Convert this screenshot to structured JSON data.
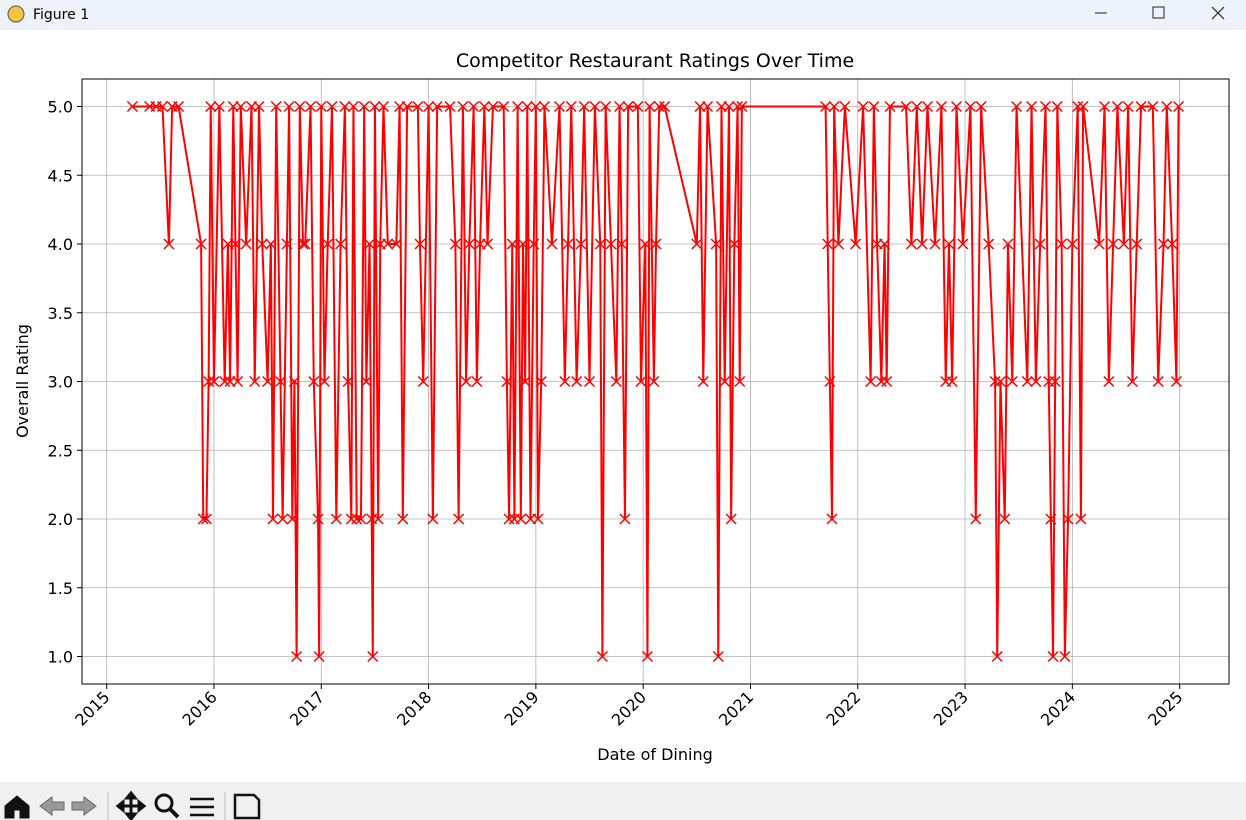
{
  "window": {
    "title": "Figure 1"
  },
  "chart_data": {
    "type": "line",
    "title": "Competitor Restaurant Ratings Over Time",
    "x_label": "Date of Dining",
    "y_label": "Overall Rating",
    "color": "#ff0000",
    "marker": "x",
    "grid": true,
    "xlim": [
      2014.77,
      2025.46
    ],
    "ylim": [
      0.8,
      5.2
    ],
    "xticks": [
      2015,
      2016,
      2017,
      2018,
      2019,
      2020,
      2021,
      2022,
      2023,
      2024,
      2025
    ],
    "yticks": [
      {
        "value": 1,
        "label": "1.0"
      },
      {
        "value": 1.5,
        "label": "1.5"
      },
      {
        "value": 2,
        "label": "2.0"
      },
      {
        "value": 2.5,
        "label": "2.5"
      },
      {
        "value": 3,
        "label": "3.0"
      },
      {
        "value": 3.5,
        "label": "3.5"
      },
      {
        "value": 4,
        "label": "4.0"
      },
      {
        "value": 4.5,
        "label": "4.5"
      },
      {
        "value": 5,
        "label": "5.0"
      }
    ],
    "x": [
      2015.24,
      2015.4,
      2015.46,
      2015.52,
      2015.58,
      2015.61,
      2015.67,
      2015.88,
      2015.9,
      2015.93,
      2015.95,
      2015.97,
      2016.0,
      2016.05,
      2016.1,
      2016.13,
      2016.15,
      2016.18,
      2016.2,
      2016.22,
      2016.25,
      2016.3,
      2016.35,
      2016.38,
      2016.42,
      2016.45,
      2016.5,
      2016.53,
      2016.55,
      2016.58,
      2016.62,
      2016.64,
      2016.68,
      2016.7,
      2016.73,
      2016.75,
      2016.77,
      2016.8,
      2016.83,
      2016.85,
      2016.9,
      2016.93,
      2016.97,
      2016.98,
      2017.0,
      2017.03,
      2017.06,
      2017.1,
      2017.14,
      2017.18,
      2017.22,
      2017.25,
      2017.28,
      2017.3,
      2017.33,
      2017.37,
      2017.4,
      2017.42,
      2017.45,
      2017.47,
      2017.48,
      2017.5,
      2017.53,
      2017.55,
      2017.58,
      2017.62,
      2017.7,
      2017.73,
      2017.76,
      2017.8,
      2017.9,
      2017.92,
      2017.95,
      2018.0,
      2018.04,
      2018.08,
      2018.2,
      2018.25,
      2018.28,
      2018.32,
      2018.35,
      2018.38,
      2018.42,
      2018.45,
      2018.48,
      2018.52,
      2018.55,
      2018.6,
      2018.7,
      2018.73,
      2018.75,
      2018.78,
      2018.8,
      2018.83,
      2018.86,
      2018.88,
      2018.9,
      2018.92,
      2018.95,
      2018.98,
      2019.0,
      2019.02,
      2019.05,
      2019.08,
      2019.15,
      2019.22,
      2019.27,
      2019.3,
      2019.33,
      2019.38,
      2019.42,
      2019.45,
      2019.5,
      2019.55,
      2019.6,
      2019.62,
      2019.65,
      2019.7,
      2019.75,
      2019.78,
      2019.8,
      2019.83,
      2019.86,
      2019.95,
      2019.98,
      2020.02,
      2020.04,
      2020.06,
      2020.1,
      2020.12,
      2020.15,
      2020.2,
      2020.5,
      2020.53,
      2020.56,
      2020.6,
      2020.68,
      2020.7,
      2020.73,
      2020.76,
      2020.8,
      2020.82,
      2020.85,
      2020.88,
      2020.9,
      2020.92,
      2021.7,
      2021.72,
      2021.74,
      2021.76,
      2021.78,
      2021.82,
      2021.88,
      2021.98,
      2022.05,
      2022.12,
      2022.15,
      2022.18,
      2022.22,
      2022.25,
      2022.27,
      2022.3,
      2022.45,
      2022.5,
      2022.55,
      2022.6,
      2022.65,
      2022.72,
      2022.78,
      2022.82,
      2022.85,
      2022.88,
      2022.92,
      2022.98,
      2023.05,
      2023.1,
      2023.15,
      2023.22,
      2023.28,
      2023.3,
      2023.33,
      2023.37,
      2023.4,
      2023.44,
      2023.48,
      2023.58,
      2023.62,
      2023.66,
      2023.7,
      2023.75,
      2023.78,
      2023.8,
      2023.82,
      2023.84,
      2023.86,
      2023.9,
      2023.93,
      2023.96,
      2024.0,
      2024.05,
      2024.08,
      2024.1,
      2024.25,
      2024.3,
      2024.34,
      2024.38,
      2024.42,
      2024.48,
      2024.52,
      2024.56,
      2024.6,
      2024.64,
      2024.75,
      2024.8,
      2024.85,
      2024.88,
      2024.93,
      2024.97,
      2024.99
    ],
    "values": [
      5,
      5,
      5,
      5,
      4,
      5,
      5,
      4,
      2,
      2,
      3,
      5,
      3,
      5,
      3,
      4,
      3,
      5,
      4,
      3,
      5,
      4,
      5,
      3,
      5,
      4,
      3,
      4,
      2,
      5,
      3,
      2,
      4,
      5,
      2,
      3,
      1,
      5,
      4,
      4,
      5,
      3,
      2,
      1,
      5,
      3,
      4,
      5,
      2,
      4,
      5,
      3,
      2,
      5,
      2,
      2,
      5,
      3,
      4,
      2,
      1,
      5,
      2,
      4,
      5,
      4,
      4,
      5,
      2,
      5,
      5,
      4,
      3,
      5,
      2,
      5,
      5,
      4,
      2,
      5,
      3,
      4,
      5,
      3,
      4,
      5,
      4,
      5,
      5,
      3,
      2,
      4,
      2,
      5,
      2,
      4,
      3,
      5,
      2,
      4,
      5,
      2,
      3,
      5,
      4,
      5,
      3,
      4,
      5,
      3,
      4,
      5,
      3,
      5,
      4,
      1,
      5,
      4,
      3,
      5,
      4,
      2,
      5,
      5,
      3,
      4,
      1,
      5,
      3,
      4,
      5,
      5,
      4,
      5,
      3,
      5,
      4,
      1,
      5,
      3,
      5,
      2,
      4,
      5,
      3,
      5,
      5,
      4,
      3,
      2,
      5,
      4,
      5,
      4,
      5,
      3,
      5,
      4,
      3,
      4,
      3,
      5,
      5,
      4,
      5,
      4,
      5,
      4,
      5,
      3,
      4,
      3,
      5,
      4,
      5,
      2,
      5,
      4,
      3,
      1,
      3,
      2,
      4,
      3,
      5,
      3,
      5,
      3,
      4,
      5,
      3,
      2,
      1,
      3,
      5,
      4,
      1,
      2,
      4,
      5,
      2,
      5,
      4,
      5,
      3,
      4,
      5,
      4,
      5,
      3,
      4,
      5,
      5,
      3,
      4,
      5,
      4,
      3,
      5
    ]
  }
}
